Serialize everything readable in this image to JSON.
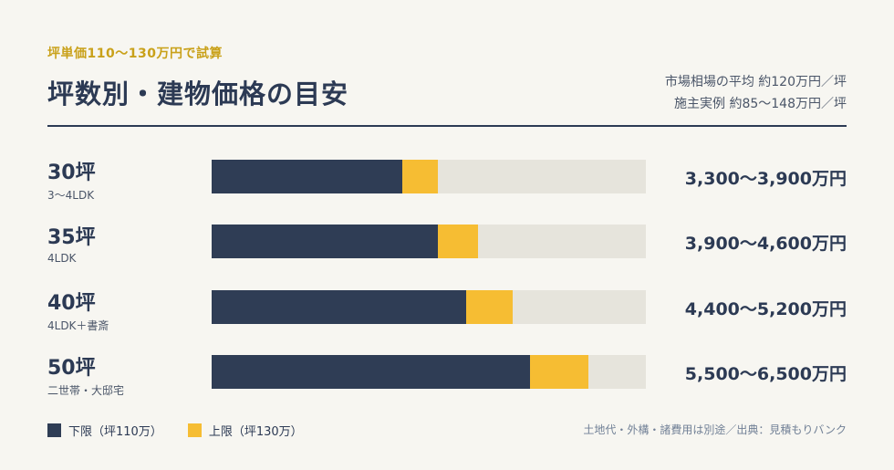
{
  "header": {
    "eyebrow": "坪単価110〜130万円で試算",
    "title": "坪数別・建物価格の目安",
    "note_market": "市場相場の平均 約120万円／坪",
    "note_examples": "施主実例 約85〜148万円／坪"
  },
  "colors": {
    "lower": "#2f3d55",
    "upper": "#f6bd33",
    "track": "#e6e4dc"
  },
  "chart_data": {
    "type": "bar",
    "title": "坪数別・建物価格の目安",
    "categories": [
      "30坪",
      "35坪",
      "40坪",
      "50坪"
    ],
    "subcategories": [
      "3〜4LDK",
      "4LDK",
      "4LDK＋書斎",
      "二世帯・大邸宅"
    ],
    "series": [
      {
        "name": "下限（坪110万）",
        "values": [
          3300,
          3900,
          4400,
          5500
        ]
      },
      {
        "name": "上限（坪130万）",
        "values": [
          3900,
          4600,
          5200,
          6500
        ]
      }
    ],
    "value_labels": [
      "3,300〜3,900万円",
      "3,900〜4,600万円",
      "4,400〜5,200万円",
      "5,500〜6,500万円"
    ],
    "xlim": [
      0,
      7500
    ],
    "grid": false,
    "legend": "bottom-left"
  },
  "legend": {
    "lower_label": "下限（坪110万）",
    "upper_label": "上限（坪130万）"
  },
  "footnote": "土地代・外構・諸費用は別途／出典：見積もりバンク"
}
